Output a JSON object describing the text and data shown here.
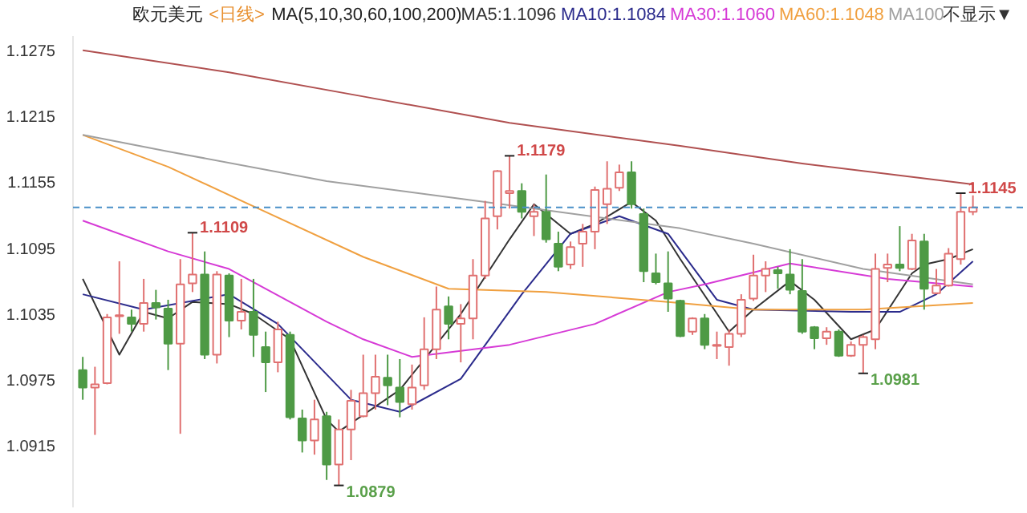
{
  "chart_data": {
    "type": "candlestick",
    "title": "欧元美元",
    "subtitle": "<日线>",
    "annotations": [
      "MA(5,10,30,60,100,200)",
      "不显示▼"
    ],
    "value_labels": [
      null,
      null,
      null,
      null,
      null,
      null,
      null,
      null,
      null,
      "1.1109",
      null,
      null,
      null,
      null,
      null,
      null,
      null,
      null,
      null,
      null,
      null,
      "1.0879",
      null,
      null,
      null,
      null,
      null,
      null,
      null,
      null,
      null,
      null,
      null,
      null,
      null,
      "1.1179",
      null,
      null,
      null,
      null,
      null,
      null,
      null,
      null,
      null,
      null,
      null,
      null,
      null,
      null,
      null,
      null,
      null,
      null,
      null,
      null,
      null,
      null,
      null,
      null,
      null,
      null,
      null,
      null,
      "1.0981",
      null,
      null,
      null,
      null,
      null,
      null,
      null,
      "1.1145",
      null
    ],
    "categories": [
      null,
      null,
      null,
      null,
      null,
      null,
      null,
      null,
      null,
      null,
      null,
      null,
      null,
      null,
      null,
      null,
      null,
      null,
      null,
      null,
      null,
      null,
      null,
      null,
      null,
      null,
      null,
      null,
      null,
      null,
      null,
      null,
      null,
      null,
      null,
      null,
      null,
      null,
      null,
      null,
      null,
      null,
      null,
      null,
      null,
      null,
      null,
      null,
      null,
      null,
      null,
      null,
      null,
      null,
      null,
      null,
      null,
      null,
      null,
      null,
      null,
      null,
      null,
      null,
      null,
      null,
      null,
      null,
      null,
      null,
      null,
      null,
      null,
      null
    ],
    "ohlc": [
      [
        1.0984,
        1.0996,
        1.0957,
        1.0968
      ],
      [
        1.0968,
        1.0987,
        1.0925,
        1.0971
      ],
      [
        1.0972,
        1.1035,
        1.0971,
        1.1032
      ],
      [
        1.1033,
        1.1083,
        1.1017,
        1.1034
      ],
      [
        1.1032,
        1.1039,
        1.1019,
        1.1026
      ],
      [
        1.1026,
        1.1067,
        1.1019,
        1.1045
      ],
      [
        1.1045,
        1.1057,
        1.103,
        1.1041
      ],
      [
        1.104,
        1.1048,
        1.0984,
        1.1008
      ],
      [
        1.1008,
        1.1085,
        1.0926,
        1.1062
      ],
      [
        1.1063,
        1.1109,
        1.1055,
        1.1071
      ],
      [
        1.1071,
        1.1092,
        1.0994,
        1.0998
      ],
      [
        1.0998,
        1.1074,
        1.099,
        1.1071
      ],
      [
        1.107,
        1.1072,
        1.1014,
        1.1029
      ],
      [
        1.1029,
        1.1067,
        1.1021,
        1.1037
      ],
      [
        1.1037,
        1.1067,
        1.0996,
        1.1016
      ],
      [
        1.1005,
        1.1019,
        1.0964,
        1.0991
      ],
      [
        1.0991,
        1.1028,
        1.0982,
        1.1021
      ],
      [
        1.1016,
        1.1019,
        1.0939,
        1.0941
      ],
      [
        1.094,
        1.0948,
        1.0909,
        1.092
      ],
      [
        1.092,
        1.0957,
        1.0907,
        1.0939
      ],
      [
        1.0942,
        1.0946,
        1.0884,
        1.0898
      ],
      [
        1.0898,
        1.0939,
        1.0879,
        1.093
      ],
      [
        1.093,
        1.0966,
        1.0902,
        1.0956
      ],
      [
        1.0942,
        1.0998,
        1.0941,
        1.0963
      ],
      [
        1.0963,
        1.0998,
        1.0948,
        1.0978
      ],
      [
        1.0977,
        1.0998,
        1.0952,
        1.097
      ],
      [
        1.0968,
        1.0994,
        1.0941,
        1.0955
      ],
      [
        1.0953,
        1.0989,
        1.0948,
        1.0968
      ],
      [
        1.097,
        1.1032,
        1.0966,
        1.1003
      ],
      [
        1.1003,
        1.106,
        1.0994,
        1.1039
      ],
      [
        1.1042,
        1.1051,
        1.1012,
        1.1026
      ],
      [
        1.1026,
        1.1044,
        1.0991,
        1.1031
      ],
      [
        1.1031,
        1.1085,
        1.1012,
        1.107
      ],
      [
        1.107,
        1.1138,
        1.1067,
        1.1122
      ],
      [
        1.1124,
        1.1166,
        1.1112,
        1.1165
      ],
      [
        1.1145,
        1.1179,
        1.1131,
        1.1147
      ],
      [
        1.1147,
        1.1154,
        1.1122,
        1.1128
      ],
      [
        1.1124,
        1.1135,
        1.1106,
        1.1128
      ],
      [
        1.1128,
        1.1162,
        1.11,
        1.1103
      ],
      [
        1.1099,
        1.111,
        1.1074,
        1.1078
      ],
      [
        1.108,
        1.1101,
        1.1076,
        1.1096
      ],
      [
        1.1099,
        1.1117,
        1.1078,
        1.111
      ],
      [
        1.111,
        1.1151,
        1.1094,
        1.1148
      ],
      [
        1.1135,
        1.1174,
        1.1117,
        1.1149
      ],
      [
        1.115,
        1.1171,
        1.1147,
        1.1164
      ],
      [
        1.1164,
        1.1174,
        1.1131,
        1.1135
      ],
      [
        1.1126,
        1.1131,
        1.1064,
        1.1074
      ],
      [
        1.1072,
        1.109,
        1.1062,
        1.1064
      ],
      [
        1.1063,
        1.1092,
        1.1037,
        1.1049
      ],
      [
        1.1047,
        1.1048,
        1.1014,
        1.1015
      ],
      [
        1.1019,
        1.1032,
        1.1016,
        1.1031
      ],
      [
        1.1031,
        1.1035,
        1.1003,
        1.1007
      ],
      [
        1.1006,
        1.1019,
        1.0994,
        1.1007
      ],
      [
        1.1005,
        1.1021,
        1.0988,
        1.1017
      ],
      [
        1.1017,
        1.1053,
        1.1014,
        1.1048
      ],
      [
        1.1049,
        1.1089,
        1.1047,
        1.107
      ],
      [
        1.107,
        1.1083,
        1.1055,
        1.1076
      ],
      [
        1.1075,
        1.1078,
        1.1058,
        1.1072
      ],
      [
        1.1071,
        1.1094,
        1.1053,
        1.1057
      ],
      [
        1.1056,
        1.1085,
        1.1017,
        1.1019
      ],
      [
        1.1023,
        1.1024,
        1.1003,
        1.1013
      ],
      [
        1.1013,
        1.1023,
        1.1007,
        1.1019
      ],
      [
        1.1019,
        1.1021,
        1.0996,
        1.0997
      ],
      [
        1.0997,
        1.101,
        1.0996,
        1.1007
      ],
      [
        1.1007,
        1.1016,
        1.0981,
        1.1014
      ],
      [
        1.1012,
        1.109,
        1.1003,
        1.1076
      ],
      [
        1.1077,
        1.109,
        1.1064,
        1.108
      ],
      [
        1.108,
        1.1115,
        1.1074,
        1.1077
      ],
      [
        1.1076,
        1.1108,
        1.1075,
        1.1102
      ],
      [
        1.1101,
        1.1108,
        1.1039,
        1.1058
      ],
      [
        1.1054,
        1.1076,
        1.1053,
        1.1061
      ],
      [
        1.1061,
        1.1095,
        1.106,
        1.109
      ],
      [
        1.1085,
        1.1145,
        1.108,
        1.1128
      ],
      [
        1.1128,
        1.1143,
        1.1125,
        1.1132
      ]
    ],
    "colors": [
      "#4e9a45",
      "#e07070",
      "#e07070",
      "#e07070",
      "#4e9a45",
      "#e07070",
      "#4e9a45",
      "#4e9a45",
      "#e07070",
      "#e07070",
      "#4e9a45",
      "#e07070",
      "#4e9a45",
      "#e07070",
      "#4e9a45",
      "#4e9a45",
      "#e07070",
      "#4e9a45",
      "#4e9a45",
      "#e07070",
      "#4e9a45",
      "#e07070",
      "#e07070",
      "#e07070",
      "#e07070",
      "#4e9a45",
      "#4e9a45",
      "#e07070",
      "#e07070",
      "#e07070",
      "#4e9a45",
      "#e07070",
      "#e07070",
      "#e07070",
      "#e07070",
      "#e07070",
      "#4e9a45",
      "#e07070",
      "#4e9a45",
      "#4e9a45",
      "#e07070",
      "#e07070",
      "#e07070",
      "#e07070",
      "#e07070",
      "#4e9a45",
      "#4e9a45",
      "#4e9a45",
      "#4e9a45",
      "#4e9a45",
      "#e07070",
      "#4e9a45",
      "#e07070",
      "#e07070",
      "#e07070",
      "#e07070",
      "#e07070",
      "#4e9a45",
      "#4e9a45",
      "#4e9a45",
      "#4e9a45",
      "#e07070",
      "#4e9a45",
      "#e07070",
      "#e07070",
      "#e07070",
      "#e07070",
      "#4e9a45",
      "#e07070",
      "#4e9a45",
      "#e07070",
      "#e07070",
      "#e07070",
      "#e07070"
    ],
    "series": [
      {
        "type": "line",
        "name": "MA5:1.1096",
        "color": "#333333",
        "values": [
          1.1067,
          null,
          null,
          1.0998,
          null,
          1.1037,
          null,
          1.1031,
          null,
          1.1046,
          null,
          null,
          1.1044,
          null,
          1.1035,
          null,
          null,
          1.1012,
          null,
          null,
          1.0939,
          1.0928,
          null,
          null,
          null,
          null,
          1.0966,
          null,
          null,
          null,
          null,
          1.1035,
          null,
          null,
          null,
          1.1103,
          null,
          1.1135,
          null,
          null,
          1.1108,
          null,
          1.1117,
          null,
          null,
          1.1137,
          null,
          1.112,
          null,
          1.1085,
          null,
          null,
          null,
          1.1019,
          null,
          1.1039,
          null,
          null,
          1.1065,
          null,
          1.1048,
          null,
          null,
          1.1012,
          null,
          1.1021,
          null,
          null,
          1.1072,
          1.108,
          null,
          1.1085,
          null,
          1.1094
        ]
      },
      {
        "type": "line",
        "name": "MA10:1.1084",
        "color": "#2b2b8c",
        "values": [
          1.1053,
          null,
          null,
          null,
          null,
          1.1039,
          null,
          null,
          null,
          null,
          null,
          null,
          1.1053,
          null,
          null,
          null,
          1.1026,
          null,
          null,
          null,
          null,
          null,
          1.0957,
          null,
          null,
          null,
          1.0946,
          null,
          null,
          null,
          null,
          1.0976,
          null,
          null,
          null,
          null,
          1.1053,
          null,
          null,
          null,
          1.1108,
          null,
          null,
          null,
          1.1124,
          null,
          null,
          null,
          1.1108,
          null,
          null,
          null,
          1.1048,
          null,
          null,
          1.1039,
          null,
          null,
          null,
          null,
          null,
          null,
          null,
          1.1037,
          null,
          null,
          null,
          1.1037,
          null,
          null,
          1.1053,
          null,
          null,
          1.1083
        ]
      },
      {
        "type": "line",
        "name": "MA30:1.1060",
        "color": "#d63ad6",
        "values": [
          1.112,
          null,
          null,
          null,
          null,
          null,
          null,
          1.1092,
          null,
          null,
          null,
          null,
          1.1076,
          null,
          null,
          null,
          null,
          null,
          null,
          null,
          1.1028,
          null,
          null,
          1.1012,
          null,
          null,
          null,
          1.0996,
          null,
          null,
          null,
          null,
          null,
          null,
          null,
          1.1007,
          null,
          null,
          null,
          null,
          null,
          null,
          1.1026,
          null,
          null,
          null,
          null,
          null,
          1.1055,
          null,
          null,
          1.1062,
          null,
          null,
          null,
          null,
          null,
          null,
          1.1081,
          null,
          null,
          null,
          null,
          null,
          null,
          null,
          1.1067,
          null,
          null,
          null,
          null,
          null,
          null,
          1.106
        ]
      },
      {
        "type": "line",
        "name": "MA60:1.1048",
        "color": "#f0a040",
        "values": [
          1.1198,
          null,
          null,
          null,
          null,
          null,
          null,
          1.1169,
          null,
          null,
          null,
          null,
          null,
          null,
          1.1133,
          null,
          null,
          null,
          null,
          null,
          null,
          null,
          null,
          1.1087,
          null,
          null,
          null,
          null,
          null,
          null,
          1.1058,
          null,
          null,
          null,
          null,
          null,
          null,
          null,
          1.1055,
          null,
          null,
          null,
          null,
          null,
          null,
          null,
          null,
          null,
          1.1046,
          null,
          null,
          null,
          null,
          null,
          null,
          1.1039,
          null,
          null,
          null,
          null,
          null,
          null,
          null,
          null,
          1.1039,
          null,
          null,
          null,
          null,
          null,
          null,
          null,
          null,
          1.1045
        ]
      },
      {
        "type": "line",
        "name": "MA100",
        "color": "#a0a0a0",
        "values": [
          1.1198,
          null,
          null,
          null,
          null,
          null,
          null,
          1.1183,
          null,
          null,
          null,
          null,
          null,
          null,
          null,
          null,
          null,
          null,
          null,
          null,
          1.1156,
          null,
          null,
          null,
          null,
          null,
          null,
          null,
          null,
          null,
          null,
          null,
          null,
          1.1137,
          null,
          null,
          null,
          null,
          null,
          null,
          null,
          null,
          null,
          null,
          null,
          null,
          null,
          null,
          null,
          1.1113,
          null,
          null,
          null,
          null,
          null,
          1.1099,
          null,
          null,
          null,
          null,
          null,
          null,
          null,
          null,
          1.1076,
          null,
          null,
          null,
          null,
          null,
          null,
          null,
          null,
          1.1062
        ]
      },
      {
        "type": "line",
        "color": "#b05050",
        "values": [
          1.1275,
          null,
          null,
          null,
          null,
          null,
          null,
          null,
          null,
          null,
          null,
          null,
          1.1255,
          null,
          null,
          null,
          null,
          null,
          null,
          null,
          null,
          null,
          null,
          1.1233,
          null,
          null,
          null,
          null,
          null,
          null,
          null,
          null,
          null,
          null,
          null,
          1.1209,
          null,
          null,
          null,
          null,
          null,
          null,
          null,
          null,
          null,
          null,
          null,
          null,
          null,
          1.1188,
          null,
          null,
          null,
          null,
          null,
          null,
          null,
          null,
          null,
          1.1172,
          null,
          null,
          null,
          null,
          null,
          null,
          null,
          null,
          null,
          null,
          null,
          null,
          null,
          1.1153
        ]
      }
    ],
    "ref_lines": [
      {
        "axis": "y",
        "value": 1.1132,
        "color": "#4a90c8",
        "line_style": "dashed"
      }
    ],
    "ylim": [
      1.0859,
      1.1288
    ],
    "yticks": [
      1.0915,
      1.0975,
      1.1035,
      1.1095,
      1.1155,
      1.1215,
      1.1275
    ],
    "tick_labels": "y",
    "legend": "top",
    "grid": false
  }
}
